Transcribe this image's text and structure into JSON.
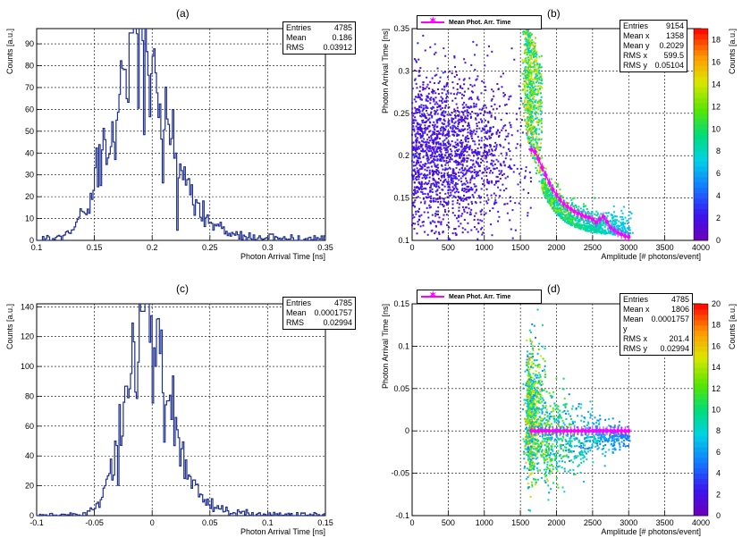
{
  "panels": [
    {
      "id": "a",
      "label": "(a)",
      "stats": {
        "rows": [
          [
            "Entries",
            "4785"
          ],
          [
            "Mean",
            "0.186"
          ],
          [
            "RMS",
            "0.03912"
          ]
        ]
      }
    },
    {
      "id": "b",
      "label": "(b)",
      "legend": "Mean Phot. Arr. Time",
      "stats": {
        "rows": [
          [
            "Entries",
            "9154"
          ],
          [
            "Mean x",
            "1358"
          ],
          [
            "Mean y",
            "0.2029"
          ],
          [
            "RMS x",
            "599.5"
          ],
          [
            "RMS y",
            "0.05104"
          ]
        ]
      }
    },
    {
      "id": "c",
      "label": "(c)",
      "stats": {
        "rows": [
          [
            "Entries",
            "4785"
          ],
          [
            "Mean",
            "0.0001757"
          ],
          [
            "RMS",
            "0.02994"
          ]
        ]
      }
    },
    {
      "id": "d",
      "label": "(d)",
      "legend": "Mean Phot. Arr. Time",
      "stats": {
        "rows": [
          [
            "Entries",
            "4785"
          ],
          [
            "Mean x",
            "1806"
          ],
          [
            "Mean y",
            "0.0001757"
          ],
          [
            "RMS x",
            "201.4"
          ],
          [
            "RMS y",
            "0.02994"
          ]
        ]
      }
    }
  ],
  "colors": {
    "hist": "#1f2f8f",
    "marker": "#ff00ff"
  },
  "chart_data": [
    {
      "type": "histogram",
      "title": "(a)",
      "xlabel": "Photon Arrival Time [ns]",
      "ylabel": "Counts [a.u.]",
      "xlim": [
        0.1,
        0.35
      ],
      "ylim": [
        0,
        97
      ],
      "xticks": [
        "0.1",
        "0.15",
        "0.2",
        "0.25",
        "0.3",
        "0.35"
      ],
      "yticks": [
        "0",
        "10",
        "20",
        "30",
        "40",
        "50",
        "60",
        "70",
        "80",
        "90"
      ],
      "xtick_values": [
        0.1,
        0.15,
        0.2,
        0.25,
        0.3,
        0.35
      ],
      "ytick_values": [
        0,
        10,
        20,
        30,
        40,
        50,
        60,
        70,
        80,
        90
      ],
      "peak": 0.182,
      "peak_height": 95,
      "peak_sigma": 0.022,
      "tail": 0.05
    },
    {
      "type": "heatmap",
      "title": "(b)",
      "xlabel": "Amplitude [# photons/event]",
      "ylabel": "Photon Arrival Time [ns]",
      "zlabel": "Counts [a.u.]",
      "xlim": [
        0,
        4000
      ],
      "ylim": [
        0.1,
        0.35
      ],
      "zlim": [
        0,
        19
      ],
      "xticks": [
        "0",
        "500",
        "1000",
        "1500",
        "2000",
        "2500",
        "3000",
        "3500",
        "4000"
      ],
      "yticks": [
        "0.1",
        "0.15",
        "0.2",
        "0.25",
        "0.3",
        "0.35"
      ],
      "zticks": [
        "0",
        "2",
        "4",
        "6",
        "8",
        "10",
        "12",
        "14",
        "16",
        "18"
      ],
      "xtick_values": [
        0,
        500,
        1000,
        1500,
        2000,
        2500,
        3000,
        3500,
        4000
      ],
      "ytick_values": [
        0.1,
        0.15,
        0.2,
        0.25,
        0.3,
        0.35
      ],
      "ztick_values": [
        0,
        2,
        4,
        6,
        8,
        10,
        12,
        14,
        16,
        18
      ],
      "mean_profile": {
        "x": [
          1650,
          1700,
          1750,
          1800,
          1850,
          1900,
          1950,
          2000,
          2050,
          2100,
          2150,
          2200,
          2250,
          2300,
          2350,
          2400,
          2450,
          2500,
          2550,
          2600,
          2650,
          2700,
          2750,
          2800,
          2850,
          2900,
          2950,
          3000
        ],
        "y": [
          0.207,
          0.205,
          0.196,
          0.186,
          0.177,
          0.168,
          0.16,
          0.154,
          0.148,
          0.143,
          0.14,
          0.137,
          0.134,
          0.132,
          0.13,
          0.128,
          0.127,
          0.125,
          0.121,
          0.125,
          0.128,
          0.122,
          0.115,
          0.112,
          0.109,
          0.107,
          0.105,
          0.104
        ]
      }
    },
    {
      "type": "histogram",
      "title": "(c)",
      "xlabel": "Photon Arrival Time [ns]",
      "ylabel": "Counts [a.u.]",
      "xlim": [
        -0.1,
        0.15
      ],
      "ylim": [
        0,
        142
      ],
      "xticks": [
        "-0.1",
        "-0.05",
        "0",
        "0.05",
        "0.1",
        "0.15"
      ],
      "yticks": [
        "0",
        "20",
        "40",
        "60",
        "80",
        "100",
        "120",
        "140"
      ],
      "xtick_values": [
        -0.1,
        -0.05,
        0,
        0.05,
        0.1,
        0.15
      ],
      "ytick_values": [
        0,
        20,
        40,
        60,
        80,
        100,
        120,
        140
      ],
      "peak": -0.008,
      "peak_height": 137,
      "peak_sigma": 0.017,
      "tail": 0.035
    },
    {
      "type": "heatmap",
      "title": "(d)",
      "xlabel": "Amplitude [# photons/event]",
      "ylabel": "Photon Arrival Time [ns]",
      "zlabel": "Counts [a.u.]",
      "xlim": [
        0,
        4000
      ],
      "ylim": [
        -0.1,
        0.15
      ],
      "zlim": [
        0,
        20
      ],
      "xticks": [
        "0",
        "500",
        "1000",
        "1500",
        "2000",
        "2500",
        "3000",
        "3500",
        "4000"
      ],
      "yticks": [
        "-0.1",
        "-0.05",
        "0",
        "0.05",
        "0.1",
        "0.15"
      ],
      "zticks": [
        "0",
        "2",
        "4",
        "6",
        "8",
        "10",
        "12",
        "14",
        "16",
        "18",
        "20"
      ],
      "xtick_values": [
        0,
        500,
        1000,
        1500,
        2000,
        2500,
        3000,
        3500,
        4000
      ],
      "ytick_values": [
        -0.1,
        -0.05,
        0,
        0.05,
        0.1,
        0.15
      ],
      "ztick_values": [
        0,
        2,
        4,
        6,
        8,
        10,
        12,
        14,
        16,
        18,
        20
      ],
      "mean_profile": {
        "x": [
          1650,
          1700,
          1750,
          1800,
          1850,
          1900,
          1950,
          2000,
          2050,
          2100,
          2150,
          2200,
          2250,
          2300,
          2350,
          2400,
          2450,
          2500,
          2550,
          2600,
          2650,
          2700,
          2750,
          2800,
          2850,
          2900,
          2950,
          3000
        ],
        "y": [
          0,
          0,
          0,
          0,
          0,
          0,
          0,
          0,
          0,
          0,
          0,
          0,
          0,
          0,
          0,
          0,
          0,
          0,
          0,
          0,
          0,
          0,
          0,
          0,
          0,
          0,
          0,
          0
        ]
      }
    }
  ]
}
